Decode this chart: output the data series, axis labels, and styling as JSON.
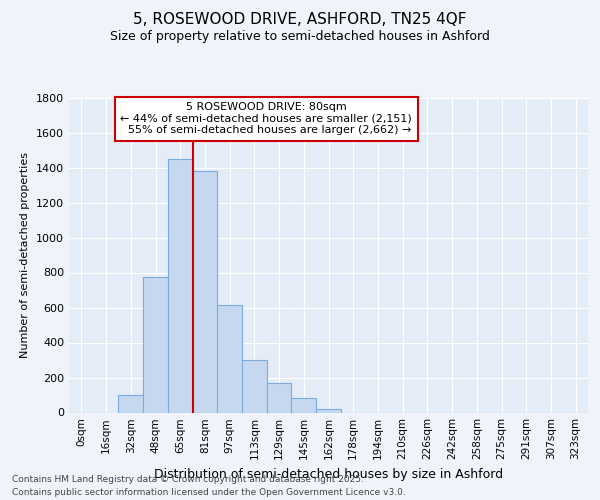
{
  "title1": "5, ROSEWOOD DRIVE, ASHFORD, TN25 4QF",
  "title2": "Size of property relative to semi-detached houses in Ashford",
  "xlabel": "Distribution of semi-detached houses by size in Ashford",
  "ylabel": "Number of semi-detached properties",
  "categories": [
    "0sqm",
    "16sqm",
    "32sqm",
    "48sqm",
    "65sqm",
    "81sqm",
    "97sqm",
    "113sqm",
    "129sqm",
    "145sqm",
    "162sqm",
    "178sqm",
    "194sqm",
    "210sqm",
    "226sqm",
    "242sqm",
    "258sqm",
    "275sqm",
    "291sqm",
    "307sqm",
    "323sqm"
  ],
  "values": [
    0,
    0,
    100,
    775,
    1450,
    1380,
    615,
    300,
    170,
    85,
    20,
    0,
    0,
    0,
    0,
    0,
    0,
    0,
    0,
    0,
    0
  ],
  "bar_color": "#c5d8f0",
  "bar_edge_color": "#7aabdc",
  "property_size": "80sqm",
  "pct_smaller": 44,
  "n_smaller": 2151,
  "pct_larger": 55,
  "n_larger": 2662,
  "annotation_box_color": "#ffffff",
  "annotation_box_edge": "#cc0000",
  "property_line_color": "#cc0000",
  "ylim": [
    0,
    1800
  ],
  "yticks": [
    0,
    200,
    400,
    600,
    800,
    1000,
    1200,
    1400,
    1600,
    1800
  ],
  "footer1": "Contains HM Land Registry data © Crown copyright and database right 2025.",
  "footer2": "Contains public sector information licensed under the Open Government Licence v3.0.",
  "bg_color": "#f0f4fa",
  "plot_bg_color": "#e4ecf7",
  "title1_fontsize": 11,
  "title2_fontsize": 9,
  "ylabel_fontsize": 8,
  "xlabel_fontsize": 9
}
